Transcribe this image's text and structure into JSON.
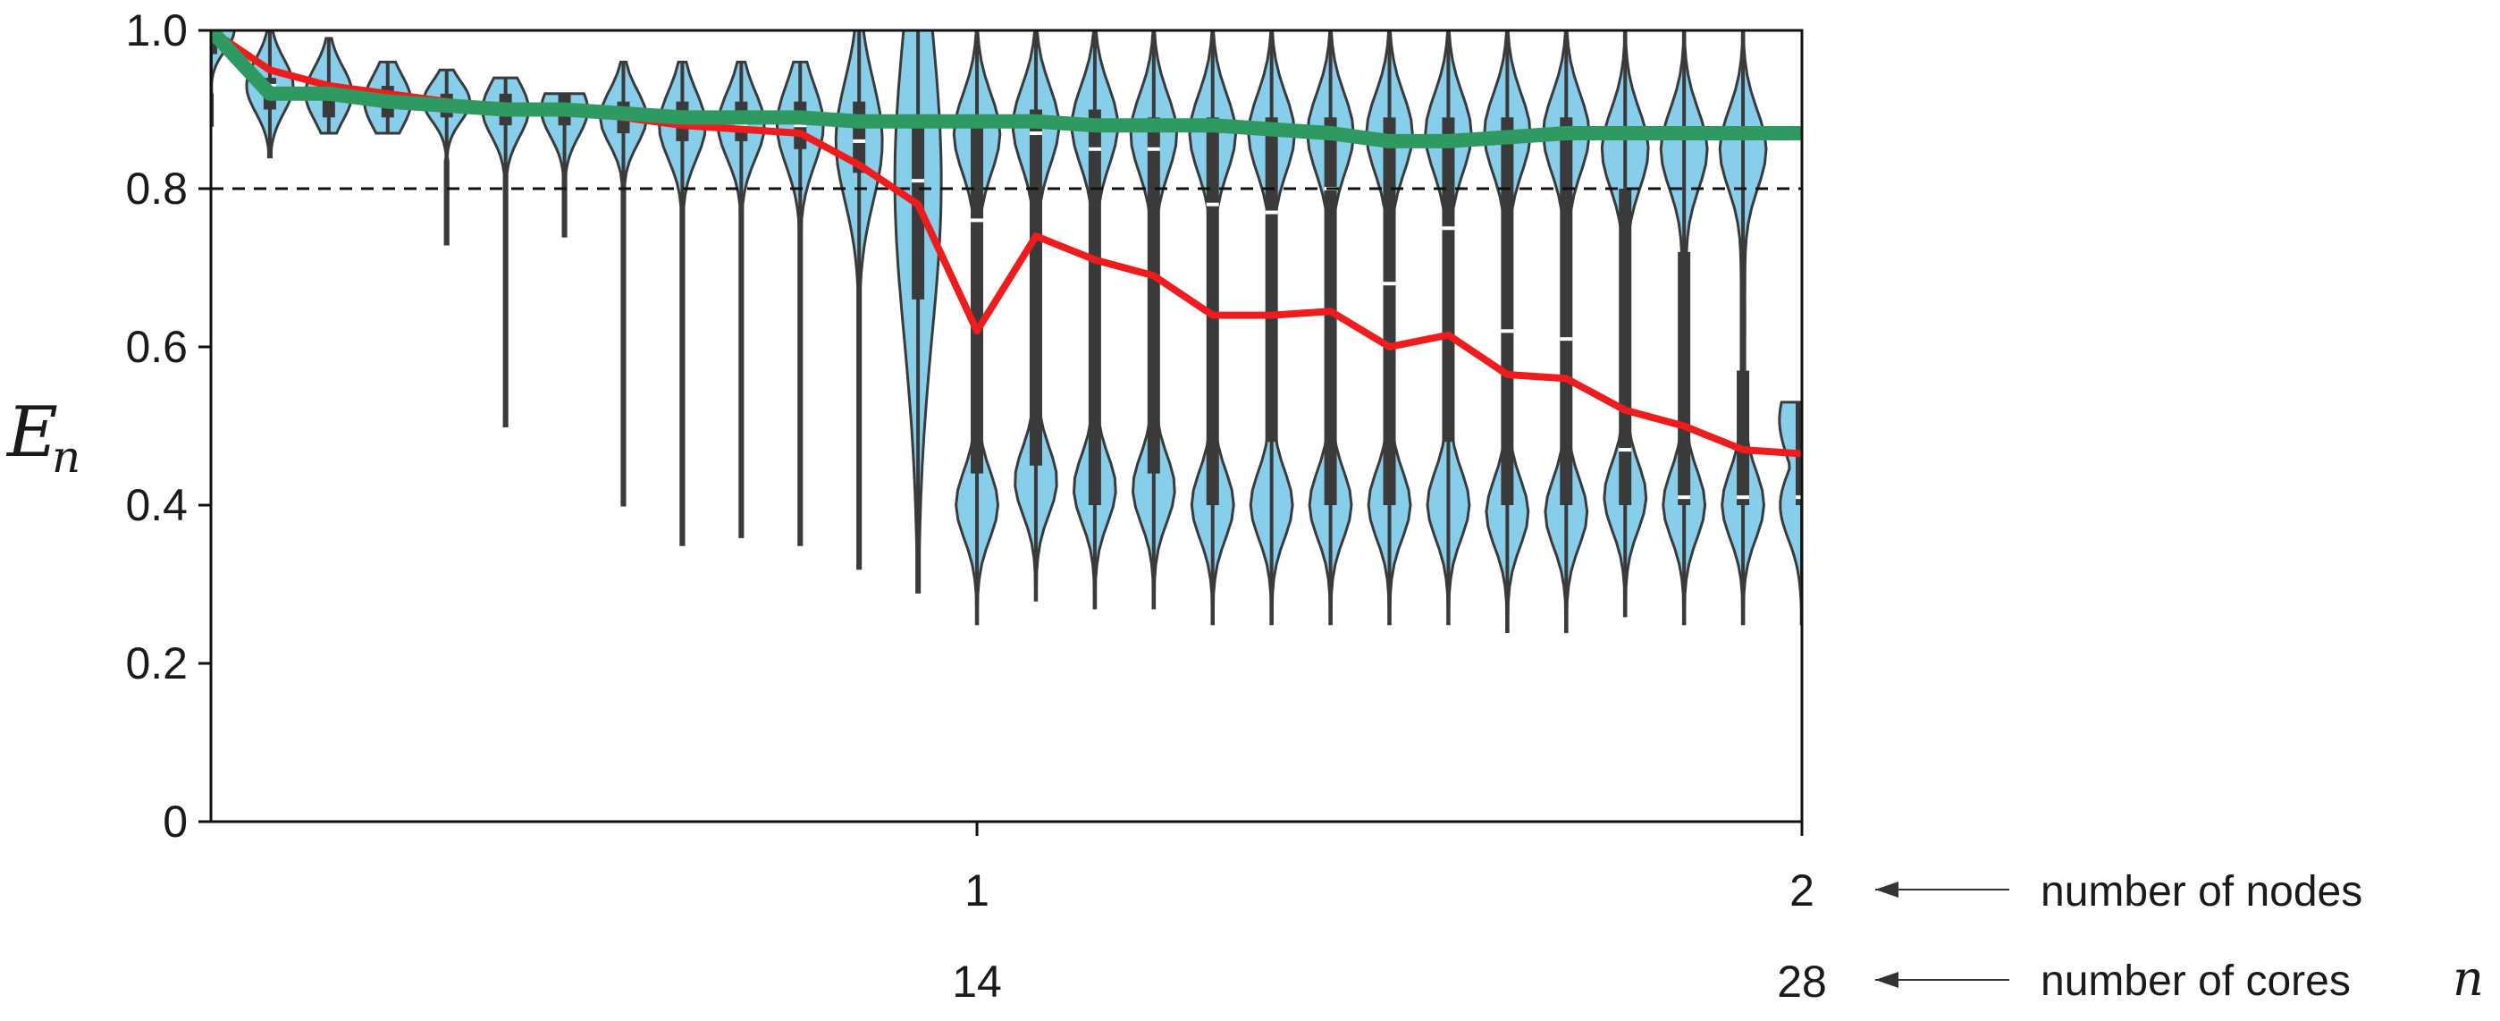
{
  "chart_data": {
    "type": "violin",
    "ylabel": "E",
    "ylabel_subscript": "n",
    "ylim": [
      0,
      1.0
    ],
    "yticks": [
      {
        "value": 0,
        "label": "0"
      },
      {
        "value": 0.2,
        "label": "0.2"
      },
      {
        "value": 0.4,
        "label": "0.4"
      },
      {
        "value": 0.6,
        "label": "0.6"
      },
      {
        "value": 0.8,
        "label": "0.8"
      },
      {
        "value": 1.0,
        "label": "1.0"
      }
    ],
    "xlim": [
      1,
      28
    ],
    "xticks_nodes": [
      {
        "cores": 14,
        "label": "1"
      },
      {
        "cores": 28,
        "label": "2"
      }
    ],
    "xticks_cores": [
      {
        "cores": 14,
        "label": "14"
      },
      {
        "cores": 28,
        "label": "28"
      }
    ],
    "annotations": {
      "nodes": "number of nodes",
      "cores": "number of cores",
      "cores_var": "n"
    },
    "reference_line": {
      "y": 0.8,
      "style": "dashed"
    },
    "violin_color": "#87ceeb",
    "violin_edge": "#3a3a3a",
    "box_color": "#3a3a3a",
    "median_color": "#ffffff",
    "cores": [
      1,
      2,
      3,
      4,
      5,
      6,
      7,
      8,
      9,
      10,
      11,
      12,
      13,
      14,
      15,
      16,
      17,
      18,
      19,
      20,
      21,
      22,
      23,
      24,
      25,
      26,
      27,
      28
    ],
    "violins": [
      {
        "n": 1,
        "min": 0.88,
        "max": 1.0,
        "q1": 0.97,
        "q3": 1.0,
        "median": 1.0,
        "shape": "top"
      },
      {
        "n": 2,
        "min": 0.84,
        "max": 1.0,
        "q1": 0.9,
        "q3": 0.94,
        "median": 0.93,
        "shape": "top"
      },
      {
        "n": 3,
        "min": 0.87,
        "max": 0.99,
        "q1": 0.89,
        "q3": 0.93,
        "median": 0.92,
        "shape": "top"
      },
      {
        "n": 4,
        "min": 0.87,
        "max": 0.96,
        "q1": 0.89,
        "q3": 0.93,
        "median": 0.91,
        "shape": "top"
      },
      {
        "n": 5,
        "min": 0.73,
        "max": 0.95,
        "q1": 0.89,
        "q3": 0.92,
        "median": 0.91,
        "shape": "top"
      },
      {
        "n": 6,
        "min": 0.5,
        "max": 0.94,
        "q1": 0.88,
        "q3": 0.92,
        "median": 0.9,
        "shape": "top"
      },
      {
        "n": 7,
        "min": 0.74,
        "max": 0.92,
        "q1": 0.88,
        "q3": 0.92,
        "median": 0.9,
        "shape": "top"
      },
      {
        "n": 8,
        "min": 0.4,
        "max": 0.96,
        "q1": 0.87,
        "q3": 0.91,
        "median": 0.89,
        "shape": "top"
      },
      {
        "n": 9,
        "min": 0.35,
        "max": 0.96,
        "q1": 0.86,
        "q3": 0.91,
        "median": 0.88,
        "shape": "top"
      },
      {
        "n": 10,
        "min": 0.36,
        "max": 0.96,
        "q1": 0.86,
        "q3": 0.91,
        "median": 0.88,
        "shape": "top"
      },
      {
        "n": 11,
        "min": 0.35,
        "max": 0.96,
        "q1": 0.85,
        "q3": 0.91,
        "median": 0.88,
        "shape": "top"
      },
      {
        "n": 12,
        "min": 0.32,
        "max": 1.0,
        "q1": 0.82,
        "q3": 0.91,
        "median": 0.86,
        "shape": "top"
      },
      {
        "n": 13,
        "min": 0.29,
        "max": 1.0,
        "q1": 0.66,
        "q3": 0.89,
        "median": 0.81,
        "shape": "top"
      },
      {
        "n": 14,
        "min": 0.25,
        "max": 1.0,
        "q1": 0.44,
        "q3": 0.89,
        "median": 0.76,
        "shape": "bimodal"
      },
      {
        "n": 15,
        "min": 0.28,
        "max": 1.0,
        "q1": 0.45,
        "q3": 0.9,
        "median": 0.87,
        "shape": "bimodal"
      },
      {
        "n": 16,
        "min": 0.27,
        "max": 1.0,
        "q1": 0.4,
        "q3": 0.9,
        "median": 0.85,
        "shape": "bimodal"
      },
      {
        "n": 17,
        "min": 0.27,
        "max": 1.0,
        "q1": 0.44,
        "q3": 0.89,
        "median": 0.85,
        "shape": "bimodal"
      },
      {
        "n": 18,
        "min": 0.25,
        "max": 1.0,
        "q1": 0.4,
        "q3": 0.89,
        "median": 0.78,
        "shape": "bimodal"
      },
      {
        "n": 19,
        "min": 0.25,
        "max": 1.0,
        "q1": 0.48,
        "q3": 0.89,
        "median": 0.77,
        "shape": "bimodal"
      },
      {
        "n": 20,
        "min": 0.25,
        "max": 1.0,
        "q1": 0.4,
        "q3": 0.89,
        "median": 0.8,
        "shape": "bimodal"
      },
      {
        "n": 21,
        "min": 0.25,
        "max": 1.0,
        "q1": 0.4,
        "q3": 0.89,
        "median": 0.68,
        "shape": "bimodal"
      },
      {
        "n": 22,
        "min": 0.25,
        "max": 1.0,
        "q1": 0.48,
        "q3": 0.89,
        "median": 0.75,
        "shape": "bimodal"
      },
      {
        "n": 23,
        "min": 0.24,
        "max": 1.0,
        "q1": 0.4,
        "q3": 0.89,
        "median": 0.62,
        "shape": "bimodal"
      },
      {
        "n": 24,
        "min": 0.24,
        "max": 1.0,
        "q1": 0.4,
        "q3": 0.89,
        "median": 0.61,
        "shape": "bimodal"
      },
      {
        "n": 25,
        "min": 0.26,
        "max": 1.0,
        "q1": 0.4,
        "q3": 0.8,
        "median": 0.47,
        "shape": "bimodal"
      },
      {
        "n": 26,
        "min": 0.25,
        "max": 1.0,
        "q1": 0.4,
        "q3": 0.72,
        "median": 0.41,
        "shape": "bimodal"
      },
      {
        "n": 27,
        "min": 0.25,
        "max": 1.0,
        "q1": 0.4,
        "q3": 0.57,
        "median": 0.41,
        "shape": "bimodal"
      },
      {
        "n": 28,
        "min": 0.25,
        "max": 0.53,
        "q1": 0.4,
        "q3": 0.53,
        "median": 0.41,
        "shape": "bimodal"
      }
    ],
    "series": [
      {
        "color": "#ee1c1c",
        "values": [
          1.0,
          0.95,
          0.93,
          0.92,
          0.91,
          0.9,
          0.9,
          0.89,
          0.88,
          0.875,
          0.87,
          0.83,
          0.78,
          0.62,
          0.74,
          0.71,
          0.69,
          0.64,
          0.64,
          0.645,
          0.6,
          0.615,
          0.565,
          0.56,
          0.52,
          0.5,
          0.47,
          0.465
        ]
      },
      {
        "color": "#2e9a62",
        "values": [
          1.0,
          0.92,
          0.92,
          0.91,
          0.905,
          0.9,
          0.9,
          0.895,
          0.89,
          0.89,
          0.89,
          0.885,
          0.885,
          0.885,
          0.885,
          0.88,
          0.88,
          0.88,
          0.875,
          0.87,
          0.86,
          0.86,
          0.865,
          0.87,
          0.87,
          0.87,
          0.87,
          0.87
        ]
      }
    ]
  }
}
